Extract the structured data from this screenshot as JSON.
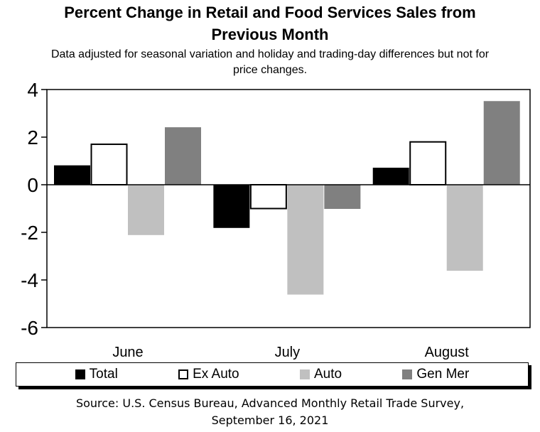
{
  "chart_data": {
    "type": "bar",
    "title_line1": "Percent Change in Retail and Food Services Sales from",
    "title_line2": "Previous Month",
    "subtitle_line1": "Data adjusted for seasonal variation and holiday and trading-day differences but not for",
    "subtitle_line2": "price changes.",
    "categories": [
      "June",
      "July",
      "August"
    ],
    "series": [
      {
        "name": "Total",
        "color": "#000000",
        "border": "#000000",
        "values": [
          0.8,
          -1.8,
          0.7
        ]
      },
      {
        "name": "Ex Auto",
        "color": "#ffffff",
        "border": "#000000",
        "values": [
          1.7,
          -1.0,
          1.8
        ]
      },
      {
        "name": "Auto",
        "color": "#c0c0c0",
        "border": "#c0c0c0",
        "values": [
          -2.1,
          -4.6,
          -3.6
        ]
      },
      {
        "name": "Gen Mer",
        "color": "#808080",
        "border": "#808080",
        "values": [
          2.4,
          -1.0,
          3.5
        ]
      }
    ],
    "ylim": [
      -6,
      4
    ],
    "yticks": [
      4,
      2,
      0,
      -2,
      -4,
      -6
    ],
    "grid": false,
    "legend_position": "bottom",
    "source_line1": "Source: U.S. Census Bureau, Advanced Monthly Retail Trade Survey,",
    "source_line2": "September 16, 2021"
  }
}
